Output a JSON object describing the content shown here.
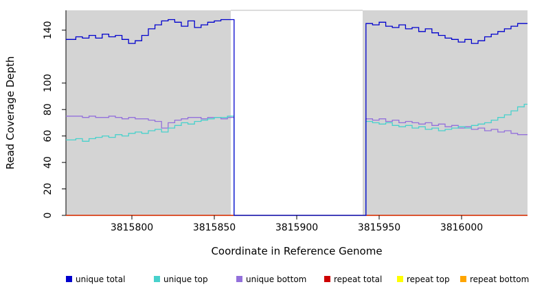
{
  "chart_data": {
    "type": "line",
    "subtype": "step-coverage-plot",
    "title": "",
    "xlabel": "Coordinate in Reference Genome",
    "ylabel": "Read Coverage Depth",
    "xlim": [
      3815760,
      3816040
    ],
    "ylim": [
      0,
      155
    ],
    "x_ticks": [
      3815800,
      3815850,
      3815900,
      3815950,
      3816000
    ],
    "y_ticks": [
      0,
      20,
      40,
      60,
      80,
      100,
      140
    ],
    "gap_region": [
      3815860,
      3815940
    ],
    "plot_bg_color": "#d4d4d4",
    "legend_position": "bottom",
    "grid": false,
    "x": [
      3815762,
      3815766,
      3815770,
      3815774,
      3815778,
      3815782,
      3815786,
      3815790,
      3815794,
      3815798,
      3815802,
      3815806,
      3815810,
      3815814,
      3815818,
      3815822,
      3815826,
      3815830,
      3815834,
      3815838,
      3815842,
      3815846,
      3815850,
      3815854,
      3815858,
      3815862,
      3815866,
      3815870,
      3815874,
      3815878,
      3815882,
      3815886,
      3815890,
      3815894,
      3815898,
      3815902,
      3815906,
      3815910,
      3815914,
      3815918,
      3815922,
      3815926,
      3815930,
      3815934,
      3815938,
      3815942,
      3815946,
      3815950,
      3815954,
      3815958,
      3815962,
      3815966,
      3815970,
      3815974,
      3815978,
      3815982,
      3815986,
      3815990,
      3815994,
      3815998,
      3816002,
      3816006,
      3816010,
      3816014,
      3816018,
      3816022,
      3816026,
      3816030,
      3816034,
      3816038
    ],
    "series": [
      {
        "name": "unique total",
        "color": "#0000CD",
        "values": [
          133,
          135,
          134,
          136,
          134,
          137,
          135,
          136,
          133,
          130,
          132,
          136,
          141,
          144,
          147,
          148,
          146,
          143,
          147,
          142,
          144,
          146,
          147,
          148,
          148,
          0,
          0,
          0,
          0,
          0,
          0,
          0,
          0,
          0,
          0,
          0,
          0,
          0,
          0,
          0,
          0,
          0,
          0,
          0,
          0,
          145,
          144,
          146,
          143,
          142,
          144,
          141,
          142,
          139,
          141,
          138,
          136,
          134,
          133,
          131,
          133,
          130,
          132,
          135,
          137,
          139,
          141,
          143,
          145,
          145
        ]
      },
      {
        "name": "unique top",
        "color": "#48D1CC",
        "values": [
          57,
          58,
          56,
          58,
          59,
          60,
          59,
          61,
          60,
          62,
          63,
          62,
          64,
          65,
          63,
          66,
          68,
          70,
          69,
          71,
          72,
          73,
          74,
          74,
          75,
          0,
          0,
          0,
          0,
          0,
          0,
          0,
          0,
          0,
          0,
          0,
          0,
          0,
          0,
          0,
          0,
          0,
          0,
          0,
          0,
          71,
          70,
          69,
          70,
          68,
          67,
          68,
          66,
          67,
          65,
          66,
          64,
          65,
          66,
          67,
          66,
          68,
          69,
          70,
          72,
          74,
          76,
          79,
          82,
          84
        ]
      },
      {
        "name": "unique bottom",
        "color": "#9370DB",
        "values": [
          75,
          75,
          74,
          75,
          74,
          74,
          75,
          74,
          73,
          74,
          73,
          73,
          72,
          71,
          66,
          70,
          72,
          73,
          74,
          74,
          73,
          74,
          74,
          73,
          74,
          0,
          0,
          0,
          0,
          0,
          0,
          0,
          0,
          0,
          0,
          0,
          0,
          0,
          0,
          0,
          0,
          0,
          0,
          0,
          0,
          73,
          72,
          73,
          71,
          72,
          70,
          71,
          70,
          69,
          70,
          68,
          69,
          67,
          68,
          66,
          67,
          65,
          66,
          64,
          65,
          63,
          64,
          62,
          61,
          61
        ]
      },
      {
        "name": "repeat total",
        "color": "#CD0000",
        "constant": 0
      },
      {
        "name": "repeat top",
        "color": "#FFFF00",
        "constant": 0
      },
      {
        "name": "repeat bottom",
        "color": "#FFA500",
        "constant": 0
      }
    ]
  }
}
